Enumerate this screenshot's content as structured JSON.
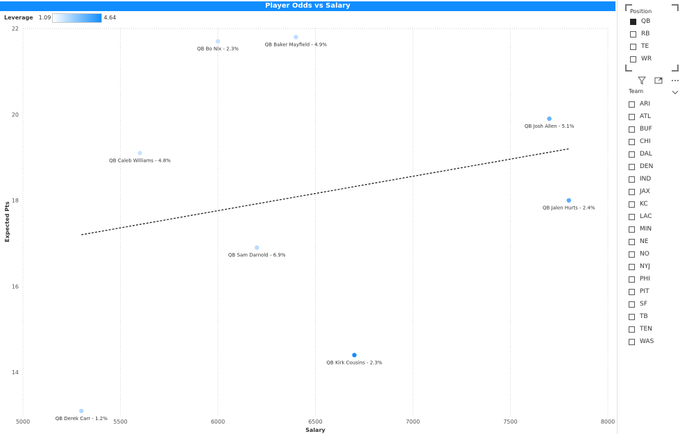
{
  "visual": {
    "title": "Player Odds vs Salary"
  },
  "legend": {
    "title": "Leverage",
    "min_label": "1.09",
    "max_label": "4.64",
    "color_low": "#ffffff",
    "color_high": "#118dff"
  },
  "chart_data": {
    "type": "scatter",
    "xlabel": "Salary",
    "ylabel": "Expected Pts",
    "xlim": [
      5000,
      8000
    ],
    "ylim": [
      13,
      22
    ],
    "x_ticks": [
      "5000",
      "5500",
      "6000",
      "6500",
      "7000",
      "7500",
      "8000"
    ],
    "y_ticks": [
      "14",
      "16",
      "18",
      "20",
      "22"
    ],
    "grid": "vertical dotted",
    "points": [
      {
        "label": "QB Baker Mayfield - 4.9%",
        "x": 6400,
        "y": 21.8,
        "leverage": 1.3
      },
      {
        "label": "QB Bo Nix - 2.3%",
        "x": 6000,
        "y": 21.7,
        "leverage": 1.09
      },
      {
        "label": "QB Josh Allen - 5.1%",
        "x": 7700,
        "y": 19.9,
        "leverage": 3.0
      },
      {
        "label": "QB Caleb Williams - 4.8%",
        "x": 5600,
        "y": 19.1,
        "leverage": 1.09
      },
      {
        "label": "QB Jalen Hurts - 2.4%",
        "x": 7800,
        "y": 18.0,
        "leverage": 3.3
      },
      {
        "label": "QB Sam Darnold - 6.9%",
        "x": 6200,
        "y": 16.9,
        "leverage": 1.4
      },
      {
        "label": "QB Kirk Cousins - 2.3%",
        "x": 6700,
        "y": 14.4,
        "leverage": 4.64
      },
      {
        "label": "QB Derek Carr - 1.2%",
        "x": 5300,
        "y": 13.1,
        "leverage": 1.5
      }
    ],
    "trend_line": {
      "x": [
        5300,
        7800
      ],
      "y": [
        17.2,
        19.2
      ]
    }
  },
  "position_slicer": {
    "title": "Position",
    "items": [
      {
        "label": "QB",
        "checked": true
      },
      {
        "label": "RB",
        "checked": false
      },
      {
        "label": "TE",
        "checked": false
      },
      {
        "label": "WR",
        "checked": false
      }
    ]
  },
  "toolbar": {
    "filter_icon": "filter-icon",
    "focus_icon": "focus-mode-icon",
    "more_icon": "more-options-icon"
  },
  "team_slicer": {
    "title": "Team",
    "items": [
      {
        "label": "ARI"
      },
      {
        "label": "ATL"
      },
      {
        "label": "BUF"
      },
      {
        "label": "CHI"
      },
      {
        "label": "DAL"
      },
      {
        "label": "DEN"
      },
      {
        "label": "IND"
      },
      {
        "label": "JAX"
      },
      {
        "label": "KC"
      },
      {
        "label": "LAC"
      },
      {
        "label": "MIN"
      },
      {
        "label": "NE"
      },
      {
        "label": "NO"
      },
      {
        "label": "NYJ"
      },
      {
        "label": "PHI"
      },
      {
        "label": "PIT"
      },
      {
        "label": "SF"
      },
      {
        "label": "TB"
      },
      {
        "label": "TEN"
      },
      {
        "label": "WAS"
      }
    ]
  }
}
